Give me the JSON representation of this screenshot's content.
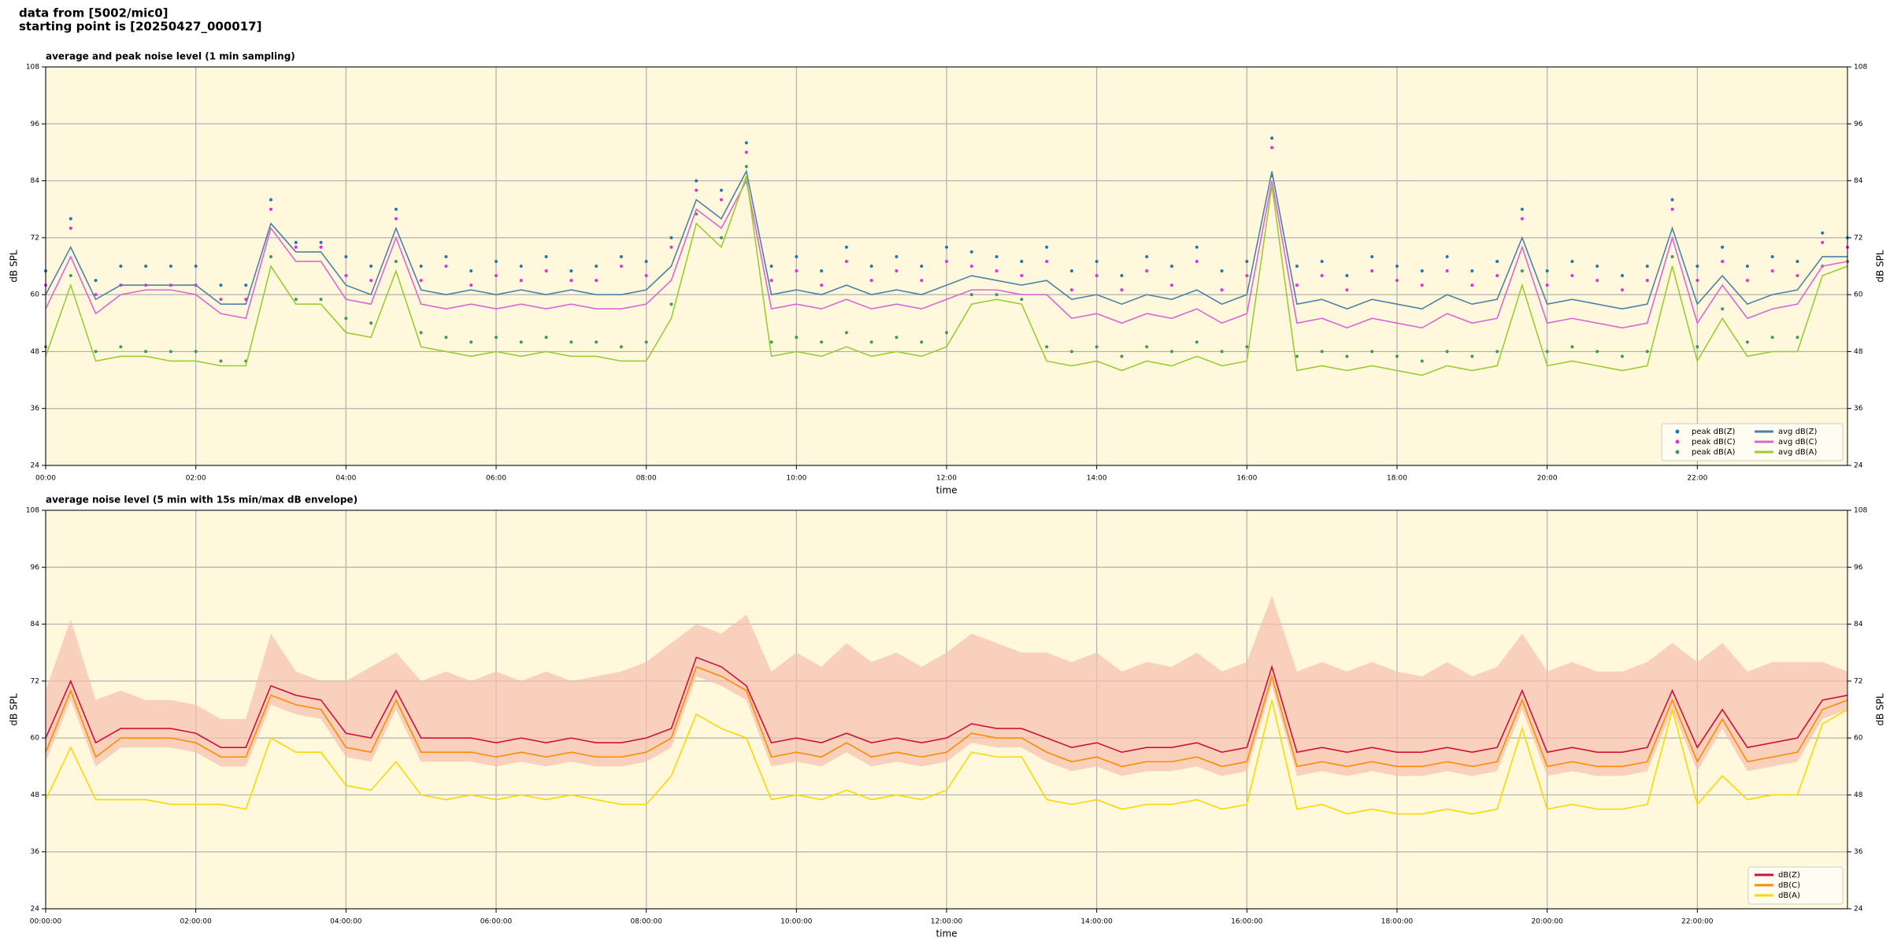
{
  "page_title": [
    "data from [5002/mic0]",
    "starting point is [20250427_000017]"
  ],
  "chart_data": [
    {
      "type": "line",
      "title": "average and peak noise level (1 min sampling)",
      "xlabel": "time",
      "ylabel": "dB SPL",
      "x": [
        0,
        20,
        40,
        60,
        80,
        100,
        120,
        140,
        160,
        180,
        200,
        220,
        240,
        260,
        280,
        300,
        320,
        340,
        360,
        380,
        400,
        420,
        440,
        460,
        480,
        500,
        520,
        540,
        560,
        580,
        600,
        620,
        640,
        660,
        680,
        700,
        720,
        740,
        760,
        780,
        800,
        820,
        840,
        860,
        880,
        900,
        920,
        940,
        960,
        980,
        1000,
        1020,
        1040,
        1060,
        1080,
        1100,
        1120,
        1140,
        1160,
        1180,
        1200,
        1220,
        1240,
        1260,
        1280,
        1300,
        1320,
        1340,
        1360,
        1380,
        1400,
        1420,
        1440
      ],
      "xlim": [
        0,
        1440
      ],
      "ylim": [
        24,
        108
      ],
      "xticks": [
        {
          "value": 0,
          "label": "00:00"
        },
        {
          "value": 120,
          "label": "02:00"
        },
        {
          "value": 240,
          "label": "04:00"
        },
        {
          "value": 360,
          "label": "06:00"
        },
        {
          "value": 480,
          "label": "08:00"
        },
        {
          "value": 600,
          "label": "10:00"
        },
        {
          "value": 720,
          "label": "12:00"
        },
        {
          "value": 840,
          "label": "14:00"
        },
        {
          "value": 960,
          "label": "16:00"
        },
        {
          "value": 1080,
          "label": "18:00"
        },
        {
          "value": 1200,
          "label": "20:00"
        },
        {
          "value": 1320,
          "label": "22:00"
        }
      ],
      "yticks": [
        24,
        36,
        48,
        60,
        72,
        84,
        96,
        108
      ],
      "grid": true,
      "legend": "lower right",
      "legend_columns": 2,
      "series": [
        {
          "name": "peak dB(Z)",
          "style": "dots",
          "color": "#1f77b4",
          "values": [
            65,
            76,
            63,
            66,
            66,
            66,
            66,
            62,
            62,
            80,
            71,
            71,
            68,
            66,
            78,
            66,
            68,
            65,
            67,
            66,
            68,
            65,
            66,
            68,
            67,
            72,
            84,
            82,
            92,
            66,
            68,
            65,
            70,
            66,
            68,
            66,
            70,
            69,
            68,
            67,
            70,
            65,
            67,
            64,
            68,
            66,
            70,
            65,
            67,
            93,
            66,
            67,
            64,
            68,
            66,
            65,
            68,
            65,
            67,
            78,
            65,
            67,
            66,
            64,
            66,
            80,
            66,
            70,
            66,
            68,
            67,
            73,
            72
          ]
        },
        {
          "name": "peak dB(C)",
          "style": "dots",
          "color": "#e22fe0",
          "values": [
            62,
            74,
            60,
            62,
            62,
            62,
            62,
            59,
            59,
            78,
            70,
            70,
            64,
            63,
            76,
            63,
            66,
            62,
            64,
            63,
            65,
            63,
            63,
            66,
            64,
            70,
            82,
            80,
            90,
            63,
            65,
            62,
            67,
            63,
            65,
            63,
            67,
            66,
            65,
            64,
            67,
            61,
            64,
            61,
            65,
            62,
            67,
            61,
            64,
            91,
            62,
            64,
            61,
            65,
            63,
            62,
            65,
            62,
            64,
            76,
            62,
            64,
            63,
            61,
            63,
            78,
            63,
            67,
            63,
            65,
            64,
            71,
            70
          ]
        },
        {
          "name": "peak dB(A)",
          "style": "dots",
          "color": "#3d9a5c",
          "values": [
            49,
            64,
            48,
            49,
            48,
            48,
            48,
            46,
            46,
            68,
            59,
            59,
            55,
            54,
            67,
            52,
            51,
            50,
            51,
            50,
            51,
            50,
            50,
            49,
            50,
            58,
            77,
            72,
            87,
            50,
            51,
            50,
            52,
            50,
            51,
            50,
            52,
            60,
            60,
            59,
            49,
            48,
            49,
            47,
            49,
            48,
            50,
            48,
            49,
            85,
            47,
            48,
            47,
            48,
            47,
            46,
            48,
            47,
            48,
            65,
            48,
            49,
            48,
            47,
            48,
            68,
            49,
            57,
            50,
            51,
            51,
            66,
            67
          ]
        },
        {
          "name": "avg dB(Z)",
          "style": "line",
          "color": "#4f81a8",
          "values": [
            60,
            70,
            59,
            62,
            62,
            62,
            62,
            58,
            58,
            75,
            69,
            69,
            62,
            60,
            74,
            61,
            60,
            61,
            60,
            61,
            60,
            61,
            60,
            60,
            61,
            66,
            80,
            76,
            86,
            60,
            61,
            60,
            62,
            60,
            61,
            60,
            62,
            64,
            63,
            62,
            63,
            59,
            60,
            58,
            60,
            59,
            61,
            58,
            60,
            86,
            58,
            59,
            57,
            59,
            58,
            57,
            60,
            58,
            59,
            72,
            58,
            59,
            58,
            57,
            58,
            74,
            58,
            64,
            58,
            60,
            61,
            68,
            68
          ]
        },
        {
          "name": "avg dB(C)",
          "style": "line",
          "color": "#dd66d6",
          "values": [
            57,
            68,
            56,
            60,
            61,
            61,
            60,
            56,
            55,
            74,
            67,
            67,
            59,
            58,
            72,
            58,
            57,
            58,
            57,
            58,
            57,
            58,
            57,
            57,
            58,
            63,
            78,
            74,
            84,
            57,
            58,
            57,
            59,
            57,
            58,
            57,
            59,
            61,
            61,
            60,
            60,
            55,
            56,
            54,
            56,
            55,
            57,
            54,
            56,
            84,
            54,
            55,
            53,
            55,
            54,
            53,
            56,
            54,
            55,
            70,
            54,
            55,
            54,
            53,
            54,
            72,
            54,
            62,
            55,
            57,
            58,
            66,
            67
          ]
        },
        {
          "name": "avg dB(A)",
          "style": "line",
          "color": "#9acd32",
          "values": [
            47,
            62,
            46,
            47,
            47,
            46,
            46,
            45,
            45,
            66,
            58,
            58,
            52,
            51,
            65,
            49,
            48,
            47,
            48,
            47,
            48,
            47,
            47,
            46,
            46,
            55,
            75,
            70,
            85,
            47,
            48,
            47,
            49,
            47,
            48,
            47,
            49,
            58,
            59,
            58,
            46,
            45,
            46,
            44,
            46,
            45,
            47,
            45,
            46,
            83,
            44,
            45,
            44,
            45,
            44,
            43,
            45,
            44,
            45,
            62,
            45,
            46,
            45,
            44,
            45,
            66,
            46,
            55,
            47,
            48,
            48,
            64,
            66
          ]
        }
      ]
    },
    {
      "type": "line",
      "title": "average noise level (5 min with 15s min/max dB envelope)",
      "xlabel": "time",
      "ylabel": "dB SPL",
      "x": [
        0,
        20,
        40,
        60,
        80,
        100,
        120,
        140,
        160,
        180,
        200,
        220,
        240,
        260,
        280,
        300,
        320,
        340,
        360,
        380,
        400,
        420,
        440,
        460,
        480,
        500,
        520,
        540,
        560,
        580,
        600,
        620,
        640,
        660,
        680,
        700,
        720,
        740,
        760,
        780,
        800,
        820,
        840,
        860,
        880,
        900,
        920,
        940,
        960,
        980,
        1000,
        1020,
        1040,
        1060,
        1080,
        1100,
        1120,
        1140,
        1160,
        1180,
        1200,
        1220,
        1240,
        1260,
        1280,
        1300,
        1320,
        1340,
        1360,
        1380,
        1400,
        1420,
        1440
      ],
      "xlim": [
        0,
        1440
      ],
      "ylim": [
        24,
        108
      ],
      "xticks": [
        {
          "value": 0,
          "label": "00:00:00"
        },
        {
          "value": 120,
          "label": "02:00:00"
        },
        {
          "value": 240,
          "label": "04:00:00"
        },
        {
          "value": 360,
          "label": "06:00:00"
        },
        {
          "value": 480,
          "label": "08:00:00"
        },
        {
          "value": 600,
          "label": "10:00:00"
        },
        {
          "value": 720,
          "label": "12:00:00"
        },
        {
          "value": 840,
          "label": "14:00:00"
        },
        {
          "value": 960,
          "label": "16:00:00"
        },
        {
          "value": 1080,
          "label": "18:00:00"
        },
        {
          "value": 1200,
          "label": "20:00:00"
        },
        {
          "value": 1320,
          "label": "22:00:00"
        }
      ],
      "yticks": [
        24,
        36,
        48,
        60,
        72,
        84,
        96,
        108
      ],
      "grid": true,
      "legend": "lower right",
      "legend_columns": 1,
      "envelope": {
        "color": "#f7bfae",
        "upper": [
          70,
          85,
          68,
          70,
          68,
          68,
          67,
          64,
          64,
          82,
          74,
          72,
          72,
          75,
          78,
          72,
          74,
          72,
          74,
          72,
          74,
          72,
          73,
          74,
          76,
          80,
          84,
          82,
          86,
          74,
          78,
          75,
          80,
          76,
          78,
          75,
          78,
          82,
          80,
          78,
          78,
          76,
          78,
          74,
          76,
          75,
          78,
          74,
          76,
          90,
          74,
          76,
          74,
          76,
          74,
          73,
          76,
          73,
          75,
          82,
          74,
          76,
          74,
          74,
          76,
          80,
          76,
          80,
          74,
          76,
          76,
          76,
          74
        ],
        "lower": [
          55,
          68,
          54,
          58,
          58,
          58,
          57,
          54,
          54,
          67,
          65,
          64,
          56,
          55,
          66,
          55,
          55,
          55,
          54,
          55,
          54,
          55,
          54,
          54,
          55,
          58,
          73,
          71,
          68,
          54,
          55,
          54,
          57,
          54,
          55,
          54,
          55,
          59,
          58,
          58,
          55,
          53,
          54,
          52,
          53,
          53,
          54,
          52,
          53,
          71,
          52,
          53,
          52,
          53,
          52,
          52,
          53,
          52,
          53,
          66,
          52,
          53,
          52,
          52,
          53,
          66,
          53,
          62,
          53,
          54,
          55,
          64,
          66
        ]
      },
      "series": [
        {
          "name": "dB(Z)",
          "style": "line",
          "color": "#d0103a",
          "values": [
            60,
            72,
            59,
            62,
            62,
            62,
            61,
            58,
            58,
            71,
            69,
            68,
            61,
            60,
            70,
            60,
            60,
            60,
            59,
            60,
            59,
            60,
            59,
            59,
            60,
            62,
            77,
            75,
            71,
            59,
            60,
            59,
            61,
            59,
            60,
            59,
            60,
            63,
            62,
            62,
            60,
            58,
            59,
            57,
            58,
            58,
            59,
            57,
            58,
            75,
            57,
            58,
            57,
            58,
            57,
            57,
            58,
            57,
            58,
            70,
            57,
            58,
            57,
            57,
            58,
            70,
            58,
            66,
            58,
            59,
            60,
            68,
            69
          ]
        },
        {
          "name": "dB(C)",
          "style": "line",
          "color": "#ff8c00",
          "values": [
            57,
            70,
            56,
            60,
            60,
            60,
            59,
            56,
            56,
            69,
            67,
            66,
            58,
            57,
            68,
            57,
            57,
            57,
            56,
            57,
            56,
            57,
            56,
            56,
            57,
            60,
            75,
            73,
            70,
            56,
            57,
            56,
            59,
            56,
            57,
            56,
            57,
            61,
            60,
            60,
            57,
            55,
            56,
            54,
            55,
            55,
            56,
            54,
            55,
            73,
            54,
            55,
            54,
            55,
            54,
            54,
            55,
            54,
            55,
            68,
            54,
            55,
            54,
            54,
            55,
            68,
            55,
            64,
            55,
            56,
            57,
            66,
            68
          ]
        },
        {
          "name": "dB(A)",
          "style": "line",
          "color": "#ffd700",
          "values": [
            47,
            58,
            47,
            47,
            47,
            46,
            46,
            46,
            45,
            60,
            57,
            57,
            50,
            49,
            55,
            48,
            47,
            48,
            47,
            48,
            47,
            48,
            47,
            46,
            46,
            52,
            65,
            62,
            60,
            47,
            48,
            47,
            49,
            47,
            48,
            47,
            49,
            57,
            56,
            56,
            47,
            46,
            47,
            45,
            46,
            46,
            47,
            45,
            46,
            68,
            45,
            46,
            44,
            45,
            44,
            44,
            45,
            44,
            45,
            62,
            45,
            46,
            45,
            45,
            46,
            66,
            46,
            52,
            47,
            48,
            48,
            63,
            66
          ]
        }
      ]
    }
  ]
}
